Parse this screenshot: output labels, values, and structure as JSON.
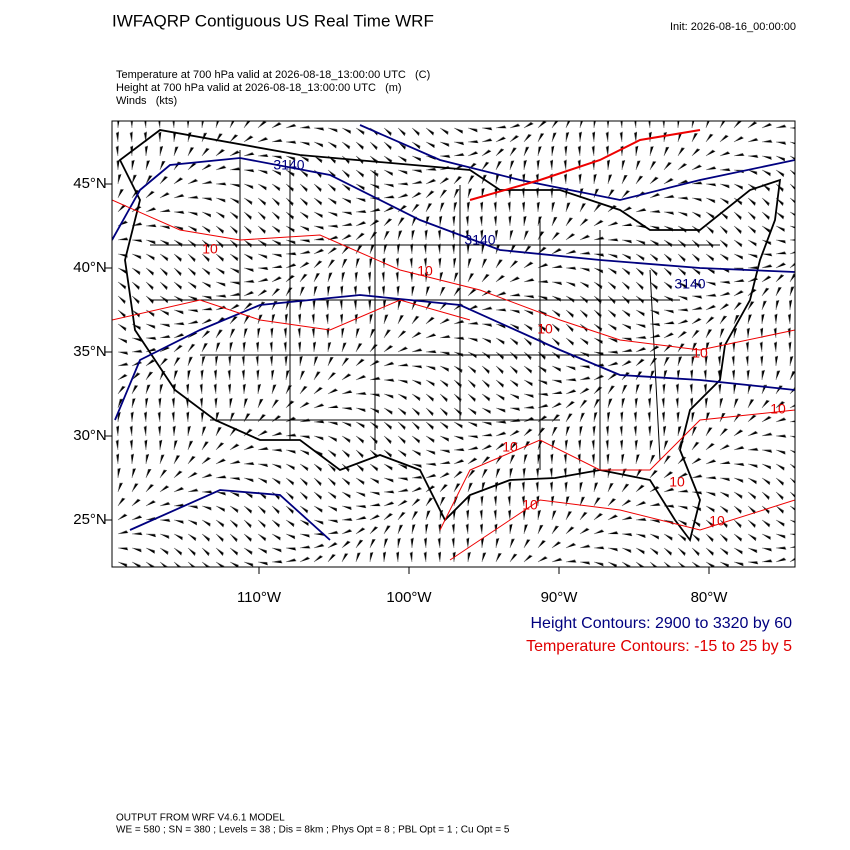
{
  "header": {
    "title": "IWFAQRP Contiguous US Real Time WRF",
    "init": "Init: 2026-08-16_00:00:00"
  },
  "fields": [
    "Temperature at 700 hPa valid at 2026-08-18_13:00:00 UTC   (C)",
    "Height at 700 hPa valid at 2026-08-18_13:00:00 UTC   (m)",
    "Winds   (kts)"
  ],
  "map": {
    "lat_labels": [
      "45°N",
      "40°N",
      "35°N",
      "30°N",
      "25°N"
    ],
    "lon_labels": [
      "110°W",
      "100°W",
      "90°W",
      "80°W"
    ],
    "height_labels": [
      "3140",
      "3140",
      "3140"
    ],
    "temp_labels": [
      "10",
      "10",
      "10",
      "10",
      "10",
      "10",
      "10",
      "10",
      "10"
    ]
  },
  "legend": {
    "height": "Height Contours: 2900 to 3320 by 60",
    "temperature": "Temperature Contours: -15 to 25 by 5"
  },
  "footer": {
    "model": "OUTPUT FROM WRF V4.6.1 MODEL",
    "settings": "WE = 580 ; SN = 380 ; Levels = 38 ; Dis = 8km ; Phys Opt = 8 ; PBL Opt = 1 ; Cu Opt = 5"
  }
}
